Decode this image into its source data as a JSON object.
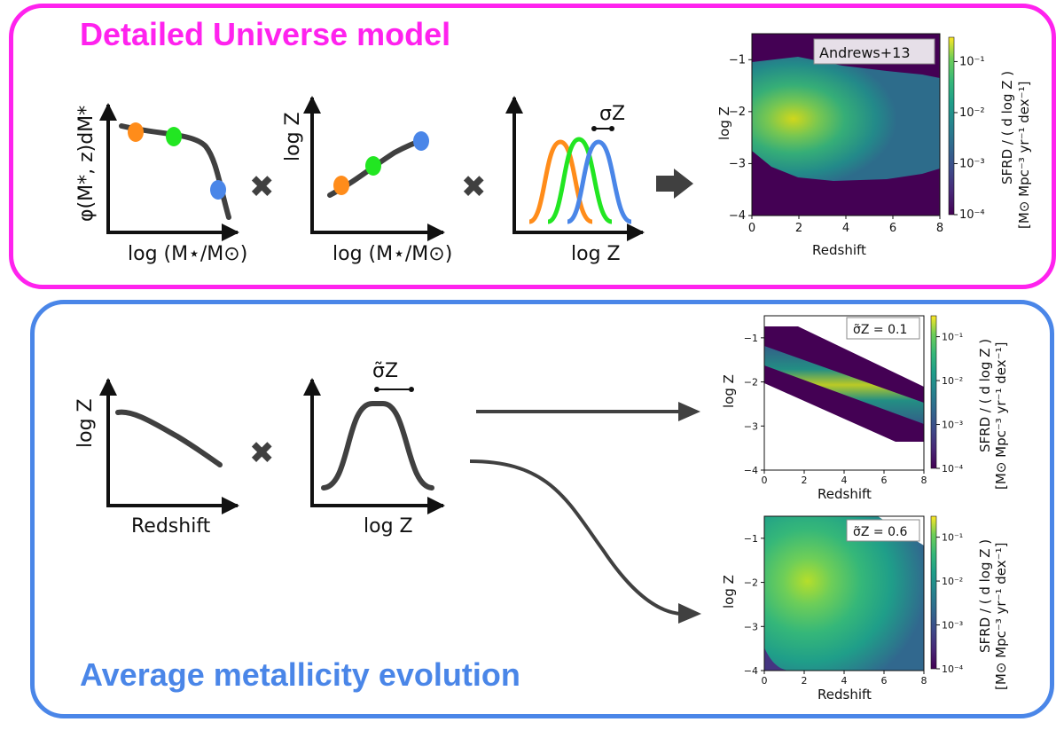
{
  "top_panel": {
    "title": "Detailed Universe model",
    "sketch_mf": {
      "ylabel": "φ(M*, z)dM*",
      "xlabel": "log (M⋆/M⊙)"
    },
    "sketch_mzr": {
      "ylabel": "log Z",
      "xlabel": "log (M⋆/M⊙)"
    },
    "sketch_dist": {
      "xlabel": "log Z",
      "width_label": "σZ"
    },
    "operators": [
      "✖",
      "✖"
    ],
    "colors": {
      "orange": "#ff8c1a",
      "green": "#22e622",
      "blue": "#4a86e8",
      "curve": "#404040"
    }
  },
  "bottom_panel": {
    "title": "Average metallicity evolution",
    "sketch_evo": {
      "ylabel": "log Z",
      "xlabel": "Redshift"
    },
    "sketch_gauss": {
      "xlabel": "log Z",
      "width_label": "σ̃Z"
    },
    "operator": "✖"
  },
  "chart_data": [
    {
      "type": "heatmap",
      "label": "Andrews+13",
      "xlabel": "Redshift",
      "ylabel": "log Z",
      "xlim": [
        0,
        8
      ],
      "ylim": [
        -4,
        -0.5
      ],
      "xticks": [
        "0",
        "2",
        "4",
        "6",
        "8"
      ],
      "yticks": [
        "−1",
        "−2",
        "−3",
        "−4"
      ],
      "colorbar": {
        "label": "SFRD / ( d log Z )",
        "unit": "[M⊙ Mpc⁻³ yr⁻¹ dex⁻¹]",
        "scale": "log",
        "ticks": [
          "10⁻¹",
          "10⁻²",
          "10⁻³",
          "10⁻⁴"
        ],
        "range": [
          0.0001,
          0.3
        ],
        "colormap": "viridis"
      }
    },
    {
      "type": "heatmap",
      "label": "σ̃Z = 0.1",
      "xlabel": "Redshift",
      "ylabel": "log Z",
      "xlim": [
        0,
        8
      ],
      "ylim": [
        -4,
        -0.5
      ],
      "xticks": [
        "0",
        "2",
        "4",
        "6",
        "8"
      ],
      "yticks": [
        "−1",
        "−2",
        "−3",
        "−4"
      ],
      "colorbar": {
        "label": "SFRD / ( d log Z )",
        "unit": "[M⊙ Mpc⁻³ yr⁻¹ dex⁻¹]",
        "scale": "log",
        "ticks": [
          "10⁻¹",
          "10⁻²",
          "10⁻³",
          "10⁻⁴"
        ],
        "range": [
          0.0001,
          0.3
        ],
        "colormap": "viridis"
      }
    },
    {
      "type": "heatmap",
      "label": "σ̃Z = 0.6",
      "xlabel": "Redshift",
      "ylabel": "log Z",
      "xlim": [
        0,
        8
      ],
      "ylim": [
        -4,
        -0.5
      ],
      "xticks": [
        "0",
        "2",
        "4",
        "6",
        "8"
      ],
      "yticks": [
        "−1",
        "−2",
        "−3",
        "−4"
      ],
      "colorbar": {
        "label": "SFRD / ( d log Z )",
        "unit": "[M⊙ Mpc⁻³ yr⁻¹ dex⁻¹]",
        "scale": "log",
        "ticks": [
          "10⁻¹",
          "10⁻²",
          "10⁻³",
          "10⁻⁴"
        ],
        "range": [
          0.0001,
          0.3
        ],
        "colormap": "viridis"
      }
    }
  ]
}
